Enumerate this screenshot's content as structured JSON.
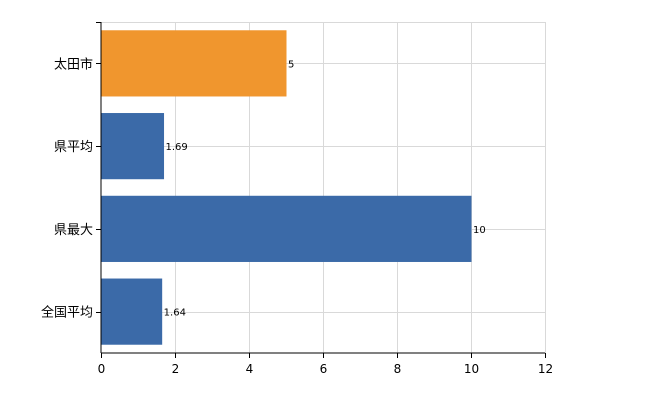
{
  "chart_data": {
    "type": "bar",
    "orientation": "horizontal",
    "categories": [
      "太田市",
      "県平均",
      "県最大",
      "全国平均"
    ],
    "values": [
      5,
      1.69,
      10,
      1.64
    ],
    "value_labels": [
      "5",
      "1.69",
      "10",
      "1.64"
    ],
    "bar_colors": [
      "#f0962e",
      "#3b6aa8",
      "#3b6aa8",
      "#3b6aa8"
    ],
    "xlim": [
      0,
      12
    ],
    "x_ticks": [
      0,
      2,
      4,
      6,
      8,
      10,
      12
    ],
    "x_tick_labels": [
      "0",
      "2",
      "4",
      "6",
      "8",
      "10",
      "12"
    ],
    "grid": true,
    "title": "",
    "xlabel": "",
    "ylabel": ""
  }
}
